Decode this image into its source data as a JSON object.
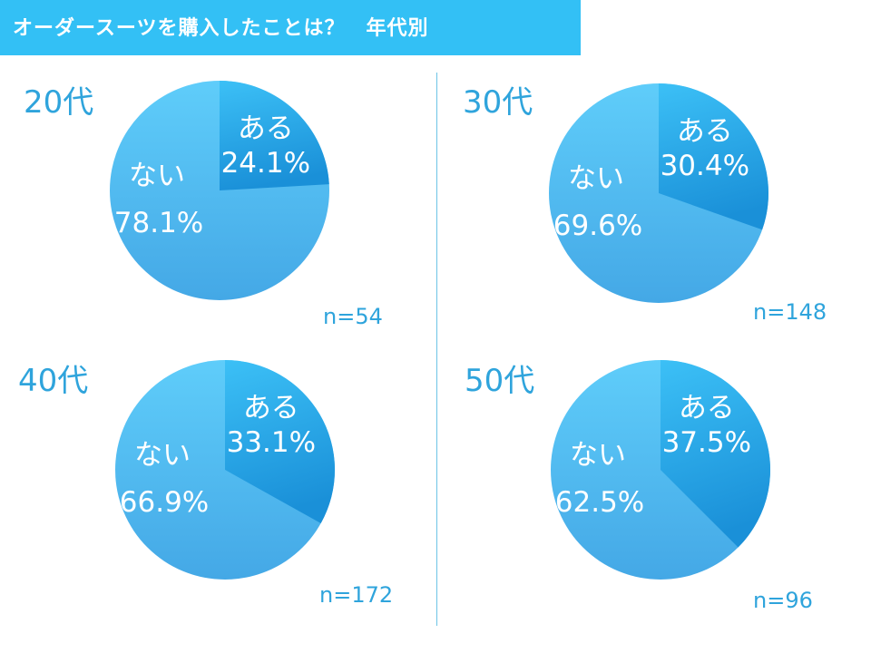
{
  "header": {
    "title": "オーダースーツを購入したことは？　年代別"
  },
  "chart_data": [
    {
      "type": "pie",
      "title": "20代",
      "categories": [
        "ある",
        "ない"
      ],
      "values": [
        24.1,
        78.1
      ],
      "labels": [
        "24.1%",
        "78.1%"
      ],
      "n": "n=54"
    },
    {
      "type": "pie",
      "title": "30代",
      "categories": [
        "ある",
        "ない"
      ],
      "values": [
        30.4,
        69.6
      ],
      "labels": [
        "30.4%",
        "69.6%"
      ],
      "n": "n=148"
    },
    {
      "type": "pie",
      "title": "40代",
      "categories": [
        "ある",
        "ない"
      ],
      "values": [
        33.1,
        66.9
      ],
      "labels": [
        "33.1%",
        "66.9%"
      ],
      "n": "n=172"
    },
    {
      "type": "pie",
      "title": "50代",
      "categories": [
        "ある",
        "ない"
      ],
      "values": [
        37.5,
        62.5
      ],
      "labels": [
        "37.5%",
        "62.5%"
      ],
      "n": "n=96"
    }
  ],
  "colors": {
    "header": "#33c0f5",
    "aru_light": "#3cc0f6",
    "aru_dark": "#1a90d8",
    "nai_light": "#5fcdfa",
    "nai_dark": "#44a8e6",
    "text": "#2fa4dc"
  }
}
